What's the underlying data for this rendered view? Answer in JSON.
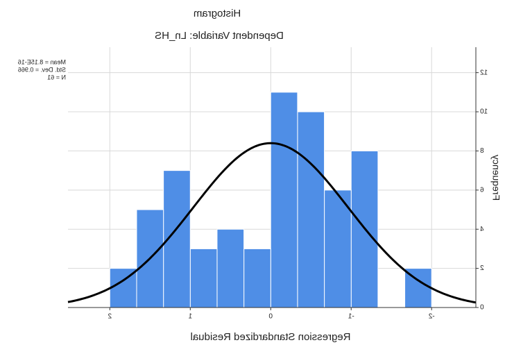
{
  "chart_data": {
    "type": "histogram",
    "title": "Histogram",
    "subtitle": "Dependent Variable: Ln_HS",
    "x_label": "Regression Standardized Residual",
    "y_label": "Frequency",
    "annotations": [
      "Mean = 8.15E-16",
      "Std. Dev. = 0.966",
      "N = 61"
    ],
    "bins": [
      -2,
      -1.6667,
      -1.3333,
      -1,
      -0.6667,
      -0.3333,
      0,
      0.3333,
      0.6667,
      1,
      1.3333,
      1.6667,
      2
    ],
    "values": [
      2,
      0,
      8,
      6,
      10,
      11,
      3,
      4,
      3,
      7,
      5,
      2
    ],
    "color": "#4f8ee6",
    "normal_curve": {
      "mean": 8.15e-16,
      "std_dev": 0.966,
      "n": 61,
      "color": "#000000"
    },
    "xlim": [
      -2.55,
      2.52
    ],
    "ylim": [
      0,
      13.3
    ],
    "xticks": [
      -2,
      -1,
      0,
      1,
      2
    ],
    "yticks": [
      0,
      2,
      4,
      6,
      8,
      10,
      12
    ],
    "grid": true
  }
}
